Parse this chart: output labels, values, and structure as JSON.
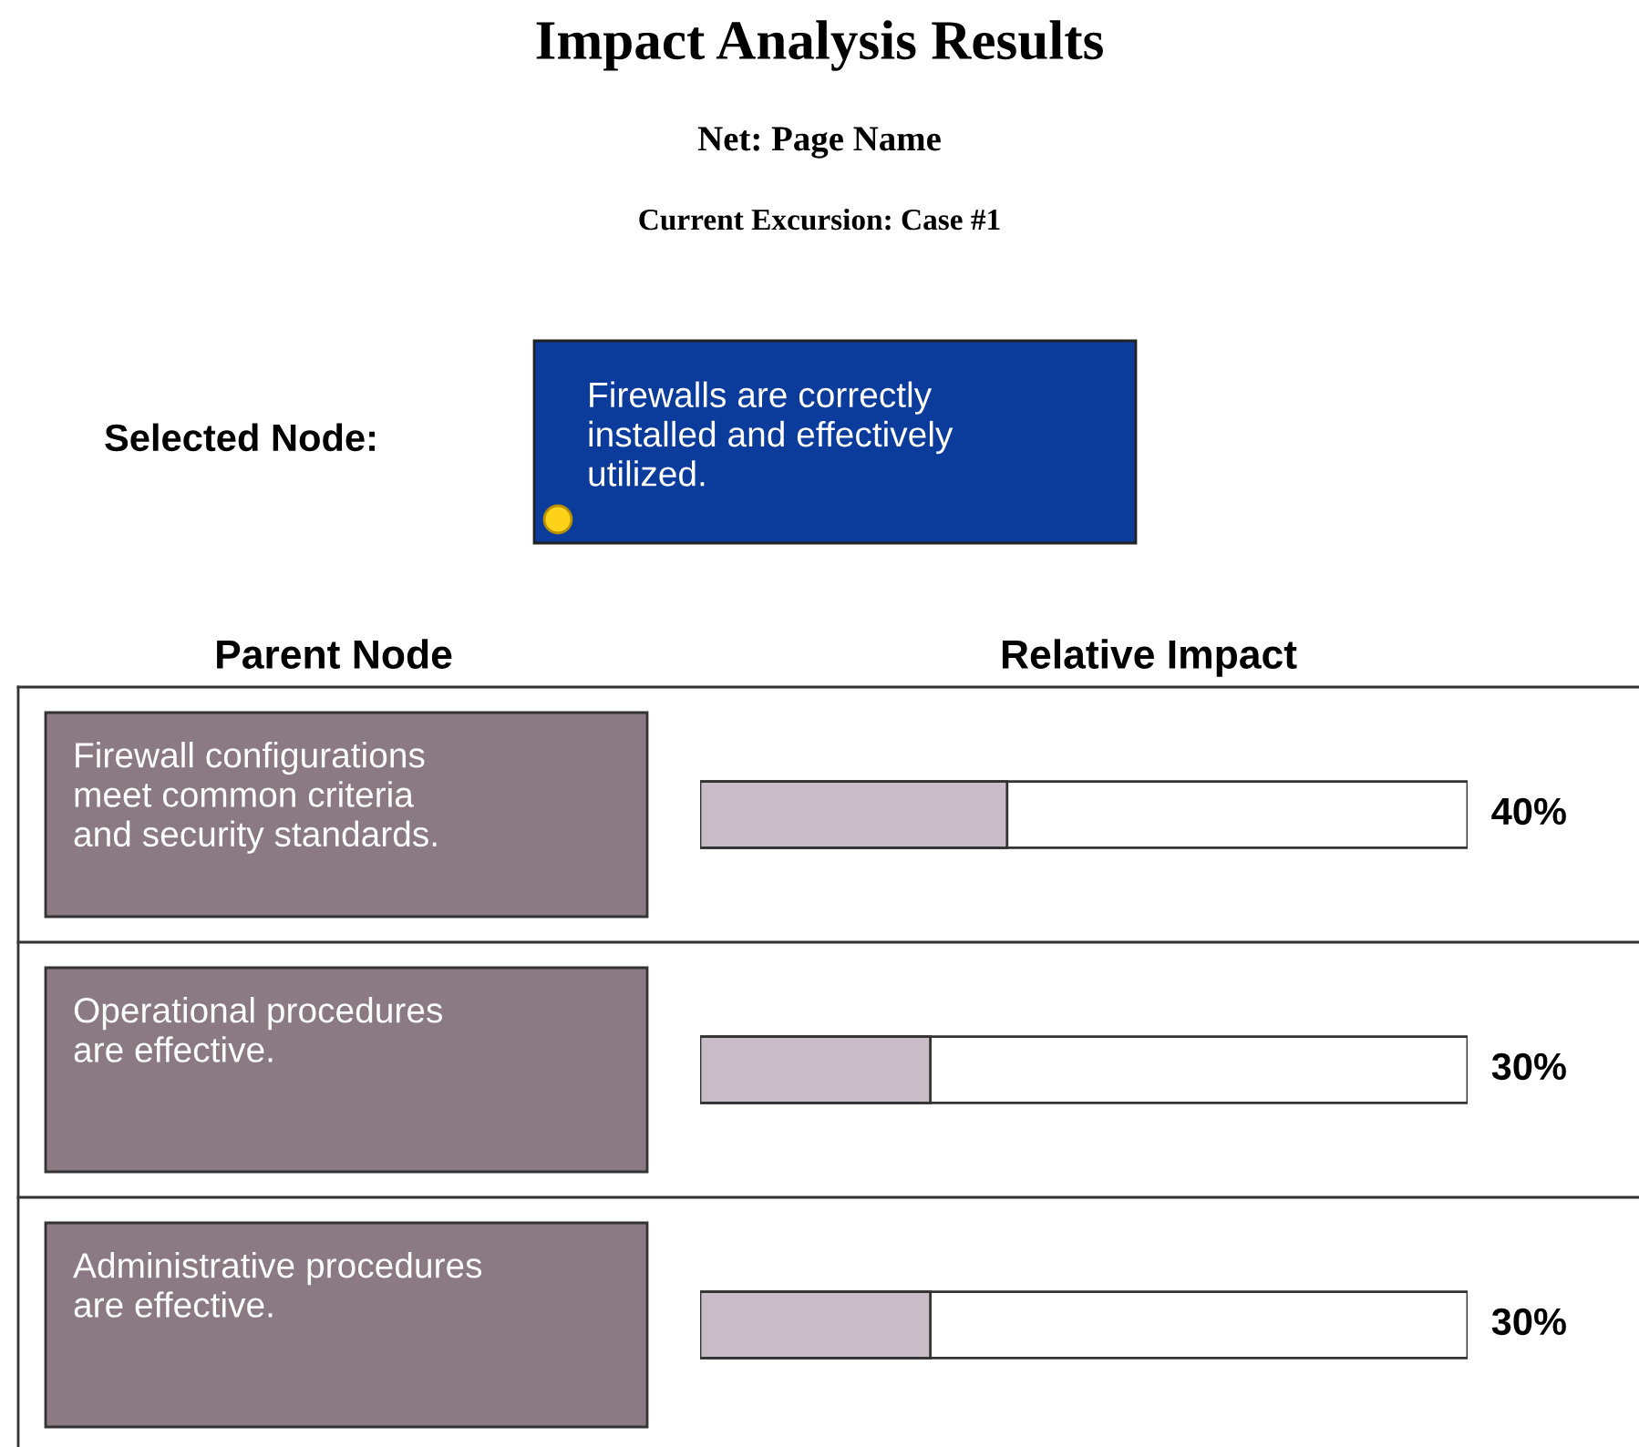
{
  "chart_data": {
    "type": "bar",
    "orientation": "horizontal",
    "title": "Impact Analysis Results",
    "subtitle": "Net: Page Name",
    "annotations": [
      "Current Excursion: Case #1",
      "Selected Node:",
      "Firewalls are correctly\ninstalled and effectively\nutilized."
    ],
    "ylabel": "Parent Node",
    "xlabel": "Relative Impact",
    "categories": [
      "Firewall configurations\nmeet common criteria\nand security standards.",
      "Operational procedures\nare effective.",
      "Administrative procedures\nare effective."
    ],
    "values": [
      40,
      30,
      30
    ],
    "value_labels": [
      "40%",
      "30%",
      "30%"
    ],
    "color": "#c8bcc6",
    "xlim": [
      0,
      100
    ]
  }
}
